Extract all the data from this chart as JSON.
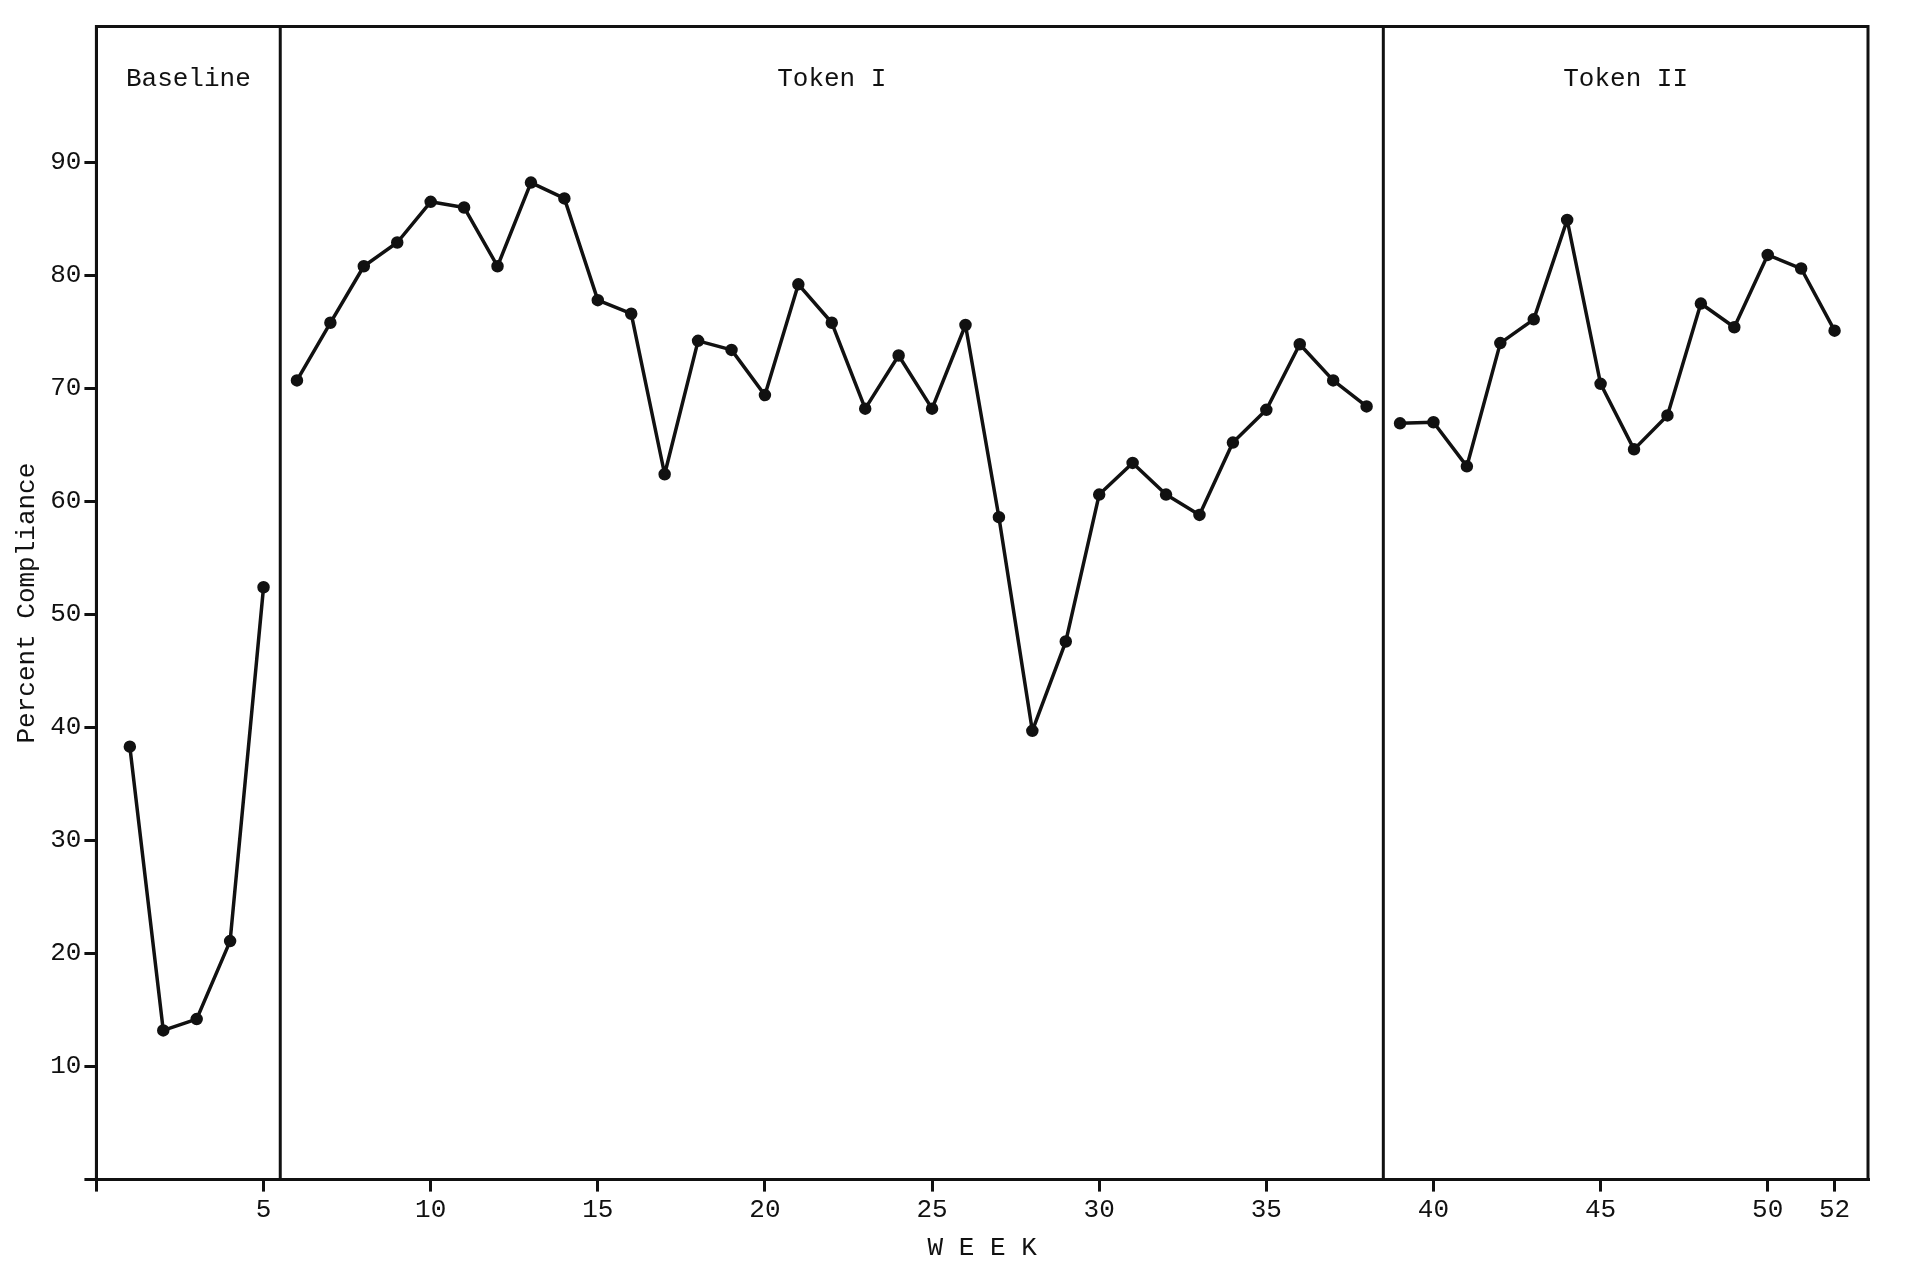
{
  "chart_data": {
    "type": "line",
    "xlabel": "W E E K",
    "ylabel": "Percent Compliance",
    "xlim": [
      0,
      53
    ],
    "ylim": [
      0,
      102
    ],
    "xticks": [
      {
        "value": 0,
        "label": null
      },
      5,
      10,
      15,
      20,
      25,
      30,
      35,
      40,
      45,
      50,
      52
    ],
    "yticks": [
      {
        "value": 0,
        "label": null
      },
      10,
      20,
      30,
      40,
      50,
      60,
      70,
      80,
      90
    ],
    "grid": false,
    "legend": false,
    "marker": "circle",
    "line_style": "solid",
    "series": [
      {
        "color": "#111111",
        "x": [
          1,
          2,
          3,
          4,
          5
        ],
        "values": [
          38.3,
          13.2,
          14.2,
          21.1,
          52.4
        ]
      },
      {
        "color": "#111111",
        "x": [
          6,
          7,
          8,
          9,
          10,
          11,
          12,
          13,
          14,
          15,
          16,
          17,
          18,
          19,
          20,
          21,
          22,
          23,
          24,
          25,
          26,
          27,
          28,
          29,
          30,
          31,
          32,
          33,
          34,
          35,
          36,
          37,
          38
        ],
        "values": [
          70.7,
          75.8,
          80.8,
          82.9,
          86.5,
          86.0,
          80.8,
          88.2,
          86.8,
          77.8,
          76.6,
          62.4,
          74.2,
          73.4,
          69.4,
          79.2,
          75.8,
          68.2,
          72.9,
          68.2,
          75.6,
          58.6,
          39.7,
          47.6,
          60.6,
          63.4,
          60.6,
          58.8,
          65.2,
          68.1,
          73.9,
          70.7,
          68.4
        ]
      },
      {
        "color": "#111111",
        "x": [
          39,
          40,
          41,
          42,
          43,
          44,
          45,
          46,
          47,
          48,
          49,
          50,
          51,
          52
        ],
        "values": [
          66.9,
          67.0,
          63.1,
          74.0,
          76.1,
          84.9,
          70.4,
          64.6,
          67.6,
          77.5,
          75.4,
          81.8,
          80.6,
          75.1
        ]
      }
    ],
    "ref_lines": [
      {
        "axis": "x",
        "value": 5.5
      },
      {
        "axis": "x",
        "value": 38.5
      }
    ],
    "annotations": [
      "Baseline",
      "Token I",
      "Token II"
    ]
  }
}
